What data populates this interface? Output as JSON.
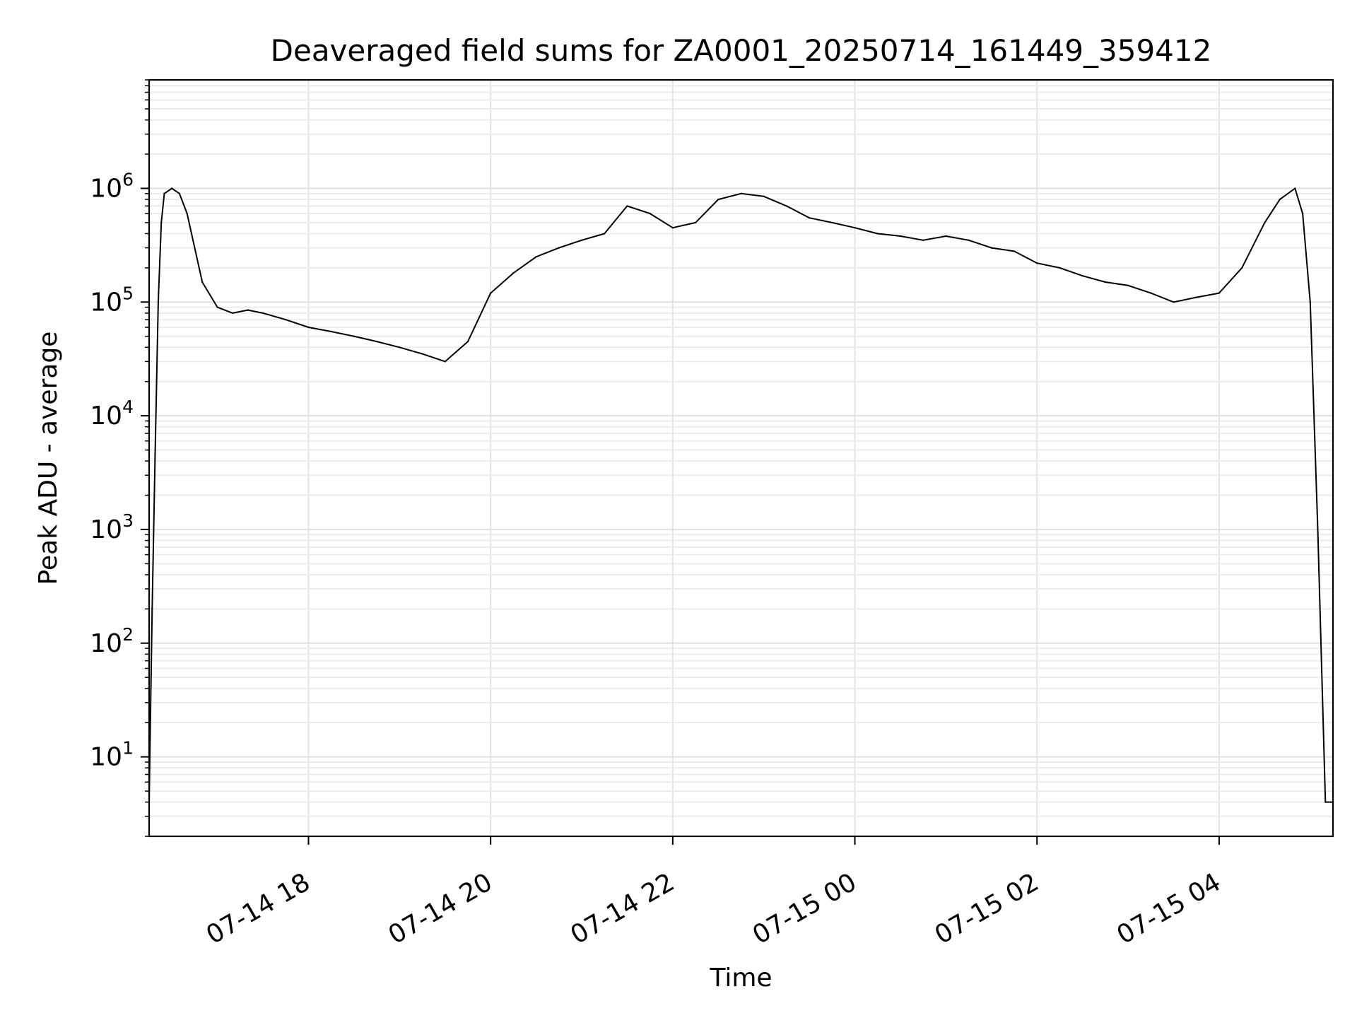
{
  "chart_data": {
    "type": "line",
    "title": "Deaveraged field sums for ZA0001_20250714_161449_359412",
    "xlabel": "Time",
    "ylabel": "Peak ADU - average",
    "yscale": "log",
    "ylim": [
      2,
      9000000
    ],
    "xlim": [
      "07-14 16:15",
      "07-15 05:15"
    ],
    "grid": true,
    "x_ticks": [
      {
        "label": "07-14 18",
        "value": "07-14 18:00"
      },
      {
        "label": "07-14 20",
        "value": "07-14 20:00"
      },
      {
        "label": "07-14 22",
        "value": "07-14 22:00"
      },
      {
        "label": "07-15 00",
        "value": "07-15 00:00"
      },
      {
        "label": "07-15 02",
        "value": "07-15 02:00"
      },
      {
        "label": "07-15 04",
        "value": "07-15 04:00"
      }
    ],
    "y_ticks": [
      {
        "base": "10",
        "exp": "1",
        "value": 10
      },
      {
        "base": "10",
        "exp": "2",
        "value": 100
      },
      {
        "base": "10",
        "exp": "3",
        "value": 1000
      },
      {
        "base": "10",
        "exp": "4",
        "value": 10000
      },
      {
        "base": "10",
        "exp": "5",
        "value": 100000
      },
      {
        "base": "10",
        "exp": "6",
        "value": 1000000
      }
    ],
    "series": [
      {
        "color": "#000000",
        "x": [
          "07-14 16:15",
          "07-14 16:17",
          "07-14 16:19",
          "07-14 16:21",
          "07-14 16:23",
          "07-14 16:25",
          "07-14 16:30",
          "07-14 16:35",
          "07-14 16:40",
          "07-14 16:50",
          "07-14 17:00",
          "07-14 17:10",
          "07-14 17:20",
          "07-14 17:30",
          "07-14 17:45",
          "07-14 18:00",
          "07-14 18:15",
          "07-14 18:30",
          "07-14 18:45",
          "07-14 19:00",
          "07-14 19:15",
          "07-14 19:30",
          "07-14 19:45",
          "07-14 20:00",
          "07-14 20:15",
          "07-14 20:30",
          "07-14 20:45",
          "07-14 21:00",
          "07-14 21:15",
          "07-14 21:30",
          "07-14 21:45",
          "07-14 22:00",
          "07-14 22:15",
          "07-14 22:30",
          "07-14 22:45",
          "07-14 23:00",
          "07-14 23:15",
          "07-14 23:30",
          "07-14 23:45",
          "07-15 00:00",
          "07-15 00:15",
          "07-15 00:30",
          "07-15 00:45",
          "07-15 01:00",
          "07-15 01:15",
          "07-15 01:30",
          "07-15 01:45",
          "07-15 02:00",
          "07-15 02:15",
          "07-15 02:30",
          "07-15 02:45",
          "07-15 03:00",
          "07-15 03:15",
          "07-15 03:30",
          "07-15 03:45",
          "07-15 04:00",
          "07-15 04:15",
          "07-15 04:30",
          "07-15 04:40",
          "07-15 04:50",
          "07-15 04:55",
          "07-15 05:00",
          "07-15 05:05",
          "07-15 05:10",
          "07-15 05:15"
        ],
        "y": [
          4,
          200,
          5000,
          100000,
          500000,
          900000,
          1000000,
          900000,
          600000,
          150000,
          90000,
          80000,
          85000,
          80000,
          70000,
          60000,
          55000,
          50000,
          45000,
          40000,
          35000,
          30000,
          45000,
          120000,
          180000,
          250000,
          300000,
          350000,
          400000,
          700000,
          600000,
          450000,
          500000,
          800000,
          900000,
          850000,
          700000,
          550000,
          500000,
          450000,
          400000,
          380000,
          350000,
          380000,
          350000,
          300000,
          280000,
          220000,
          200000,
          170000,
          150000,
          140000,
          120000,
          100000,
          110000,
          120000,
          200000,
          500000,
          800000,
          1000000,
          600000,
          100000,
          1000,
          4,
          4
        ]
      }
    ]
  }
}
